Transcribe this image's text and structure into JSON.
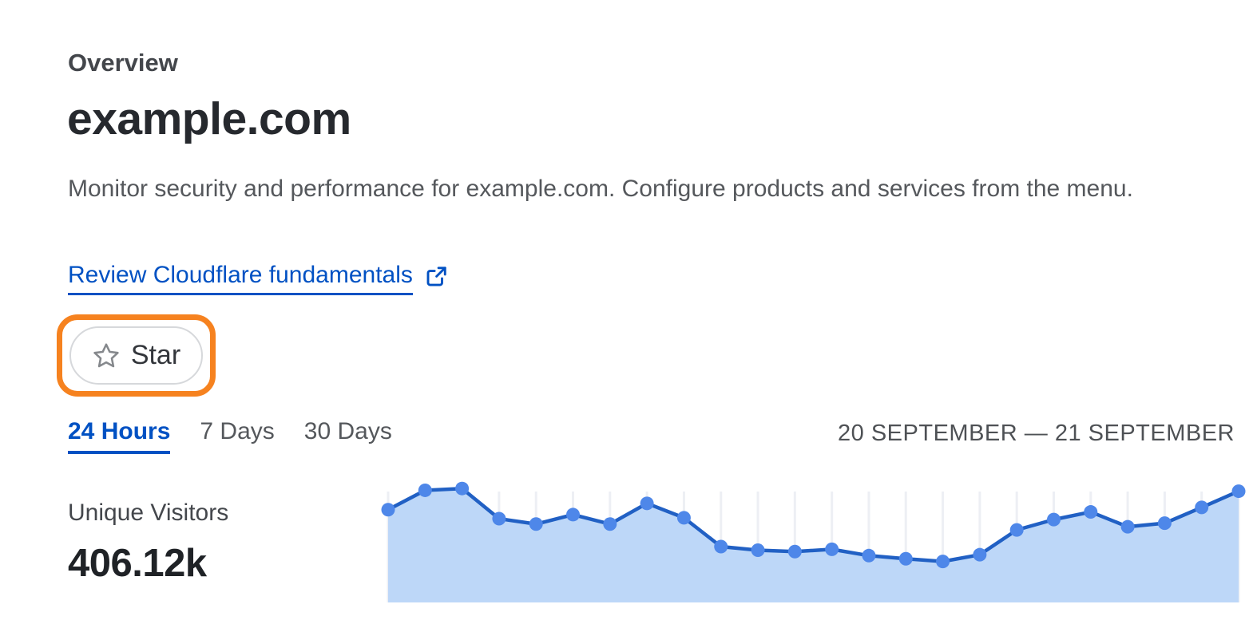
{
  "header": {
    "eyebrow": "Overview",
    "title": "example.com",
    "description": "Monitor security and performance for example.com. Configure products and services from the menu.",
    "link_label": "Review Cloudflare fundamentals",
    "star_label": "Star"
  },
  "time_range": {
    "tabs": [
      {
        "label": "24 Hours",
        "active": true
      },
      {
        "label": "7 Days",
        "active": false
      },
      {
        "label": "30 Days",
        "active": false
      }
    ],
    "date_range": "20 SEPTEMBER — 21 SEPTEMBER"
  },
  "metric": {
    "label": "Unique Visitors",
    "value": "406.12k"
  },
  "chart_data": {
    "type": "area",
    "title": "Unique Visitors — 24 Hours (20 September — 21 September)",
    "x": [
      0,
      1,
      2,
      3,
      4,
      5,
      6,
      7,
      8,
      9,
      10,
      11,
      12,
      13,
      14,
      15,
      16,
      17,
      18,
      19,
      20,
      21,
      22,
      23
    ],
    "x_unit": "hourly buckets across the 24-hour window (no tick labels shown)",
    "values": [
      20.6,
      24.9,
      25.3,
      18.6,
      17.4,
      19.5,
      17.4,
      22.0,
      18.8,
      12.4,
      11.6,
      11.3,
      11.8,
      10.4,
      9.7,
      9.1,
      10.6,
      16.1,
      18.4,
      20.1,
      16.8,
      17.6,
      21.1,
      24.7
    ],
    "y_unit": "unique visitors per hour, thousands (estimated; no y-axis labels shown; hourly values sum to ~406.12k total)",
    "ylim": [
      0,
      28.7
    ],
    "grid": "light vertical gridline at every hourly point",
    "legend": false,
    "markers": "filled circle on every point",
    "colors": {
      "line": "#2160c4",
      "point": "#4e87e9",
      "fill": "#bdd7f8",
      "grid": "#edeff4"
    }
  },
  "colors": {
    "accent_blue": "#0051c3",
    "highlight_ring_orange": "#f6821f",
    "title_text": "#26292e",
    "body_text": "#55585c"
  },
  "icons": {
    "external_link": "external-link-icon",
    "star": "star-icon"
  }
}
